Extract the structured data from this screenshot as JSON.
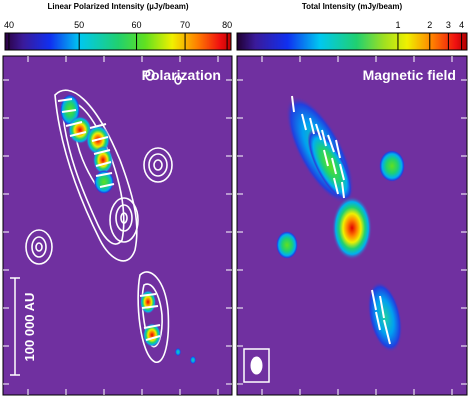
{
  "panels": [
    {
      "label": "Polarization",
      "colorbar": {
        "title": "Linear Polarized Intensity (µJy/beam)",
        "scale": "log",
        "lim": [
          39.5,
          81
        ],
        "ticks": [
          40,
          50,
          60,
          70,
          80
        ]
      }
    },
    {
      "label": "Magnetic field",
      "colorbar": {
        "title": "Total Intensity (mJy/beam)",
        "scale": "log",
        "lim": [
          0.03,
          4.5
        ],
        "ticks": [
          1,
          2,
          3,
          4
        ]
      }
    }
  ],
  "scale_bar": "100 000 AU"
}
